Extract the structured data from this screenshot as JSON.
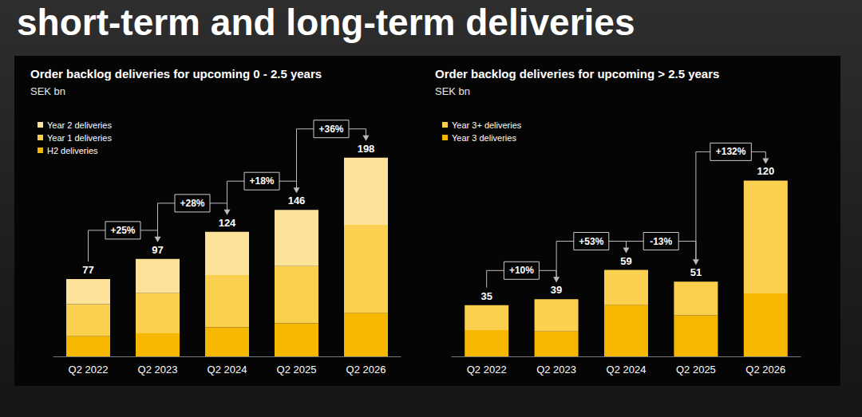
{
  "title": "short-term and long-term deliveries",
  "chart_data": [
    {
      "type": "bar",
      "title": "Order backlog deliveries for upcoming 0 - 2.5 years",
      "subtitle": "SEK bn",
      "categories": [
        "Q2 2022",
        "Q2 2023",
        "Q2 2024",
        "Q2 2025",
        "Q2 2026"
      ],
      "series": [
        {
          "name": "Year 2 deliveries",
          "color": "#fde29a",
          "values": [
            25,
            34,
            43,
            56,
            67
          ]
        },
        {
          "name": "Year 1 deliveries",
          "color": "#fbd04f",
          "values": [
            32,
            40,
            52,
            57,
            88
          ]
        },
        {
          "name": "H2 deliveries",
          "color": "#f5b700",
          "values": [
            20,
            23,
            29,
            33,
            43
          ]
        }
      ],
      "totals": [
        77,
        97,
        124,
        146,
        198
      ],
      "annotations": [
        "+25%",
        "+28%",
        "+18%",
        "+36%"
      ],
      "stacked": true,
      "legend": "upper left",
      "grid": false,
      "tick_labels": "x",
      "ylim": [
        0,
        220
      ]
    },
    {
      "type": "bar",
      "title": "Order backlog deliveries for upcoming > 2.5 years",
      "subtitle": "SEK bn",
      "categories": [
        "Q2 2022",
        "Q2 2023",
        "Q2 2024",
        "Q2 2025",
        "Q2 2026"
      ],
      "series": [
        {
          "name": "Year 3+ deliveries",
          "color": "#fbd04f",
          "values": [
            17,
            22,
            24,
            23,
            77
          ]
        },
        {
          "name": "Year 3 deliveries",
          "color": "#f5b700",
          "values": [
            18,
            17,
            35,
            28,
            43
          ]
        }
      ],
      "totals": [
        35,
        39,
        59,
        51,
        120
      ],
      "annotations": [
        "+10%",
        "+53%",
        "-13%",
        "+132%"
      ],
      "stacked": true,
      "legend": "upper left",
      "grid": false,
      "tick_labels": "x",
      "ylim": [
        0,
        130
      ]
    }
  ]
}
